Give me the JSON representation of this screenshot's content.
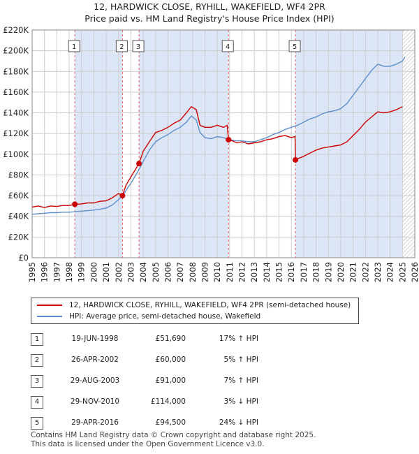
{
  "title_line1": "12, HARDWICK CLOSE, RYHILL, WAKEFIELD, WF4 2PR",
  "title_line2": "Price paid vs. HM Land Registry's House Price Index (HPI)",
  "colors": {
    "property": "#cc0000",
    "hpi": "#5b8fcf",
    "shade": "#dde6f7",
    "grid": "#cccccc"
  },
  "legend": {
    "property": "12, HARDWICK CLOSE, RYHILL, WAKEFIELD, WF4 2PR (semi-detached house)",
    "hpi": "HPI: Average price, semi-detached house, Wakefield"
  },
  "sales": [
    {
      "num": "1",
      "date": "19-JUN-1998",
      "price": "£51,690",
      "hpi": "17% ↑ HPI"
    },
    {
      "num": "2",
      "date": "26-APR-2002",
      "price": "£60,000",
      "hpi": "5% ↑ HPI"
    },
    {
      "num": "3",
      "date": "29-AUG-2003",
      "price": "£91,000",
      "hpi": "7% ↑ HPI"
    },
    {
      "num": "4",
      "date": "29-NOV-2010",
      "price": "£114,000",
      "hpi": "3% ↓ HPI"
    },
    {
      "num": "5",
      "date": "29-APR-2016",
      "price": "£94,500",
      "hpi": "24% ↓ HPI"
    }
  ],
  "footer_line1": "Contains HM Land Registry data © Crown copyright and database right 2025.",
  "footer_line2": "This data is licensed under the Open Government Licence v3.0.",
  "chart_data": {
    "type": "line",
    "xlim": [
      1995,
      2026
    ],
    "ylim": [
      0,
      220000
    ],
    "x_ticks": [
      "1995",
      "1996",
      "1997",
      "1998",
      "1999",
      "2000",
      "2001",
      "2002",
      "2003",
      "2004",
      "2005",
      "2006",
      "2007",
      "2008",
      "2009",
      "2010",
      "2011",
      "2012",
      "2013",
      "2014",
      "2015",
      "2016",
      "2017",
      "2018",
      "2019",
      "2020",
      "2021",
      "2022",
      "2023",
      "2024",
      "2025",
      "2026"
    ],
    "y_ticks": [
      {
        "value": 0,
        "label": "£0"
      },
      {
        "value": 20000,
        "label": "£20K"
      },
      {
        "value": 40000,
        "label": "£40K"
      },
      {
        "value": 60000,
        "label": "£60K"
      },
      {
        "value": 80000,
        "label": "£80K"
      },
      {
        "value": 100000,
        "label": "£100K"
      },
      {
        "value": 120000,
        "label": "£120K"
      },
      {
        "value": 140000,
        "label": "£140K"
      },
      {
        "value": 160000,
        "label": "£160K"
      },
      {
        "value": 180000,
        "label": "£180K"
      },
      {
        "value": 200000,
        "label": "£200K"
      },
      {
        "value": 220000,
        "label": "£220K"
      }
    ],
    "grid": true,
    "shaded_spans": [
      [
        1998.46,
        2002.32
      ],
      [
        2003.66,
        2010.91
      ],
      [
        2016.33,
        2025.0
      ]
    ],
    "hatched_after": 2025.0,
    "sale_markers": [
      {
        "label": "1",
        "x": 1998.46,
        "y": 51690
      },
      {
        "label": "2",
        "x": 2002.32,
        "y": 60000
      },
      {
        "label": "3",
        "x": 2003.66,
        "y": 91000
      },
      {
        "label": "4",
        "x": 2010.91,
        "y": 114000
      },
      {
        "label": "5",
        "x": 2016.33,
        "y": 94500
      }
    ],
    "series": [
      {
        "name": "12, HARDWICK CLOSE, RYHILL, WAKEFIELD, WF4 2PR (semi-detached house)",
        "x": [
          1995.0,
          1995.5,
          1996.0,
          1996.5,
          1997.0,
          1997.5,
          1998.0,
          1998.46,
          1999.0,
          1999.5,
          2000.0,
          2000.5,
          2001.0,
          2001.5,
          2002.0,
          2002.32,
          2002.6,
          2003.0,
          2003.4,
          2003.66,
          2004.0,
          2004.5,
          2005.0,
          2005.5,
          2006.0,
          2006.5,
          2007.0,
          2007.5,
          2007.9,
          2008.3,
          2008.6,
          2009.0,
          2009.5,
          2010.0,
          2010.5,
          2010.8,
          2010.91,
          2011.2,
          2011.6,
          2012.0,
          2012.5,
          2013.0,
          2013.5,
          2014.0,
          2014.5,
          2015.0,
          2015.5,
          2016.0,
          2016.3,
          2016.33,
          2016.6,
          2017.0,
          2017.5,
          2018.0,
          2018.5,
          2019.0,
          2019.5,
          2020.0,
          2020.5,
          2021.0,
          2021.5,
          2022.0,
          2022.5,
          2023.0,
          2023.5,
          2024.0,
          2024.5,
          2025.0
        ],
        "y": [
          49000,
          50000,
          48500,
          50000,
          49500,
          50500,
          50500,
          51690,
          52000,
          53000,
          53000,
          54500,
          55000,
          58000,
          62000,
          60000,
          70000,
          78000,
          86000,
          91000,
          103000,
          112000,
          121000,
          123000,
          126000,
          130000,
          133000,
          140000,
          146000,
          143000,
          128000,
          126000,
          126000,
          128000,
          126000,
          128000,
          114000,
          113000,
          111000,
          112000,
          110000,
          111000,
          112000,
          114000,
          115000,
          117000,
          118000,
          116000,
          117000,
          94500,
          96000,
          98000,
          101000,
          104000,
          106000,
          107000,
          108000,
          109000,
          112000,
          118000,
          124000,
          131000,
          136000,
          141000,
          140000,
          141000,
          143000,
          146000
        ]
      },
      {
        "name": "HPI: Average price, semi-detached house, Wakefield",
        "x": [
          1995.0,
          1995.5,
          1996.0,
          1996.5,
          1997.0,
          1997.5,
          1998.0,
          1998.5,
          1999.0,
          1999.5,
          2000.0,
          2000.5,
          2001.0,
          2001.5,
          2002.0,
          2002.5,
          2003.0,
          2003.5,
          2004.0,
          2004.5,
          2005.0,
          2005.5,
          2006.0,
          2006.5,
          2007.0,
          2007.5,
          2007.9,
          2008.3,
          2008.6,
          2009.0,
          2009.5,
          2010.0,
          2010.5,
          2011.0,
          2011.5,
          2012.0,
          2012.5,
          2013.0,
          2013.5,
          2014.0,
          2014.5,
          2015.0,
          2015.5,
          2016.0,
          2016.5,
          2017.0,
          2017.5,
          2018.0,
          2018.5,
          2019.0,
          2019.5,
          2020.0,
          2020.5,
          2021.0,
          2021.5,
          2022.0,
          2022.5,
          2023.0,
          2023.5,
          2024.0,
          2024.5,
          2025.0,
          2025.2
        ],
        "y": [
          42000,
          42500,
          43000,
          43500,
          43500,
          44000,
          44000,
          44500,
          45000,
          45500,
          46000,
          47000,
          48000,
          51000,
          56000,
          63000,
          72000,
          82000,
          93000,
          104000,
          112000,
          116000,
          119000,
          123000,
          126000,
          131000,
          137000,
          133000,
          121000,
          116000,
          115000,
          117000,
          116000,
          114000,
          113000,
          113000,
          112000,
          112000,
          114000,
          116000,
          119000,
          121000,
          124000,
          126000,
          128000,
          131000,
          134000,
          136000,
          139000,
          141000,
          142000,
          144000,
          149000,
          157000,
          165000,
          173000,
          181000,
          187000,
          185000,
          185000,
          187000,
          190000,
          194000
        ]
      }
    ]
  }
}
